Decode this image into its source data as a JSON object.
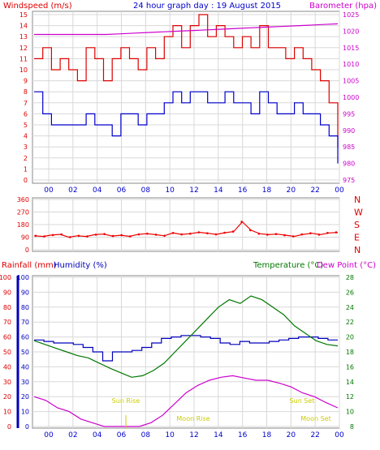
{
  "header": {
    "left_label": "Windspeed (m/s)",
    "title": "24 hour graph day : 19 August 2015",
    "right_label": "Barometer (hpa)"
  },
  "colors": {
    "wind": "#dd0000",
    "gust": "#dd0000",
    "wind_avg": "#0000cc",
    "barometer": "#cc00cc",
    "direction": "#ee0000",
    "temperature": "#007700",
    "dewpoint": "#cc00cc",
    "humidity": "#0000bb",
    "rainfall": "#dd0000",
    "sun_moon": "#cccc00",
    "left_axis": "#dd0000",
    "right_axis": "#cc00cc",
    "humidity_axis": "#0000bb"
  },
  "chart_data": [
    {
      "type": "line",
      "name": "wind-barometer",
      "x_ticks": [
        "00",
        "02",
        "04",
        "06",
        "08",
        "10",
        "12",
        "14",
        "16",
        "18",
        "20",
        "22",
        "00"
      ],
      "y_left_ticks": [
        "0",
        "1",
        "2",
        "3",
        "4",
        "5",
        "6",
        "7",
        "8",
        "9",
        "10",
        "11",
        "12",
        "13",
        "14",
        "15"
      ],
      "y_left_range": [
        0,
        15
      ],
      "y_right_ticks": [
        "975",
        "980",
        "985",
        "990",
        "995",
        "1000",
        "1005",
        "1010",
        "1015",
        "1020",
        "1025"
      ],
      "y_right_range": [
        975,
        1025
      ],
      "series": [
        {
          "key": "gust",
          "values": [
            11,
            12,
            10,
            11,
            10,
            9,
            12,
            11,
            9,
            11,
            12,
            11,
            10,
            12,
            11,
            13,
            14,
            12,
            14,
            15,
            13,
            14,
            13,
            12,
            13,
            12,
            14,
            12,
            12,
            11,
            12,
            11,
            10,
            9,
            7,
            3
          ]
        },
        {
          "key": "wind_avg",
          "values": [
            8,
            6,
            5,
            5,
            5,
            5,
            6,
            5,
            5,
            4,
            6,
            6,
            5,
            6,
            6,
            7,
            8,
            7,
            8,
            8,
            7,
            7,
            8,
            7,
            7,
            6,
            8,
            7,
            6,
            6,
            7,
            6,
            6,
            5,
            4,
            1.5
          ]
        },
        {
          "key": "barometer",
          "values": [
            1019,
            1019,
            1019,
            1019,
            1019,
            1019,
            1019.2,
            1019.4,
            1019.6,
            1019.8,
            1020,
            1020.2,
            1020.4,
            1020.6,
            1020.8,
            1021,
            1021.2,
            1021.4,
            1021.6,
            1021.8,
            1022,
            1022.2
          ]
        }
      ]
    },
    {
      "type": "scatter",
      "name": "wind-direction",
      "x_ticks": [
        "00",
        "02",
        "04",
        "06",
        "08",
        "10",
        "12",
        "14",
        "16",
        "18",
        "20",
        "22",
        "00"
      ],
      "y_ticks": [
        "360",
        "270",
        "180",
        "90",
        "0"
      ],
      "y_right_labels": [
        "N",
        "W",
        "S",
        "E",
        "N"
      ],
      "y_range": [
        0,
        360
      ],
      "series": [
        {
          "key": "direction",
          "values": [
            100,
            95,
            105,
            110,
            90,
            100,
            95,
            108,
            112,
            98,
            104,
            96,
            110,
            115,
            108,
            100,
            120,
            110,
            115,
            125,
            118,
            110,
            122,
            130,
            200,
            140,
            115,
            108,
            112,
            104,
            96,
            110,
            118,
            108,
            120,
            124
          ]
        }
      ]
    },
    {
      "type": "line",
      "name": "temperature-humidity-rain",
      "header_left_1": "Rainfall (mm)",
      "header_left_2": "Humidity (%)",
      "header_right_1": "Temperature (°C)",
      "header_right_2": "Dew Point (°C)",
      "x_ticks": [
        "00",
        "02",
        "04",
        "06",
        "08",
        "10",
        "12",
        "14",
        "16",
        "18",
        "20",
        "22",
        "00"
      ],
      "y_rain_ticks": [
        "0",
        "10",
        "20",
        "30",
        "40",
        "50",
        "60",
        "70",
        "80",
        "90",
        "100"
      ],
      "y_humidity_ticks": [
        "0",
        "10",
        "20",
        "30",
        "40",
        "50",
        "60",
        "70",
        "80",
        "90",
        "100"
      ],
      "y_humidity_range": [
        0,
        100
      ],
      "y_temp_ticks": [
        "8",
        "10",
        "12",
        "14",
        "16",
        "18",
        "20",
        "22",
        "24",
        "26",
        "28"
      ],
      "y_temp_range": [
        8,
        28
      ],
      "annotations": [
        "Sun Rise",
        "Moon Rise",
        "Sun Set",
        "Moon Set"
      ],
      "series": [
        {
          "key": "humidity",
          "values": [
            58,
            57,
            56,
            56,
            55,
            53,
            50,
            44,
            50,
            50,
            51,
            53,
            56,
            59,
            60,
            61,
            61,
            60,
            59,
            56,
            55,
            57,
            56,
            56,
            57,
            58,
            59,
            60,
            60,
            59,
            58,
            58
          ]
        },
        {
          "key": "temperature",
          "values": [
            19.5,
            19,
            18.5,
            18,
            17.5,
            17.2,
            16.5,
            15.8,
            15.2,
            14.6,
            14.8,
            15.5,
            16.5,
            18,
            19.5,
            21,
            22.5,
            24,
            25,
            24.5,
            25.5,
            25,
            24,
            23,
            21.5,
            20.5,
            19.5,
            19,
            18.8
          ]
        },
        {
          "key": "dewpoint",
          "values": [
            12,
            11.5,
            10.5,
            10,
            9,
            8.5,
            8,
            8,
            8,
            8,
            8.5,
            9.5,
            11,
            12.5,
            13.5,
            14.2,
            14.6,
            14.8,
            14.5,
            14.2,
            14.2,
            13.8,
            13.3,
            12.5,
            12,
            11.2,
            10.5
          ]
        }
      ]
    }
  ]
}
